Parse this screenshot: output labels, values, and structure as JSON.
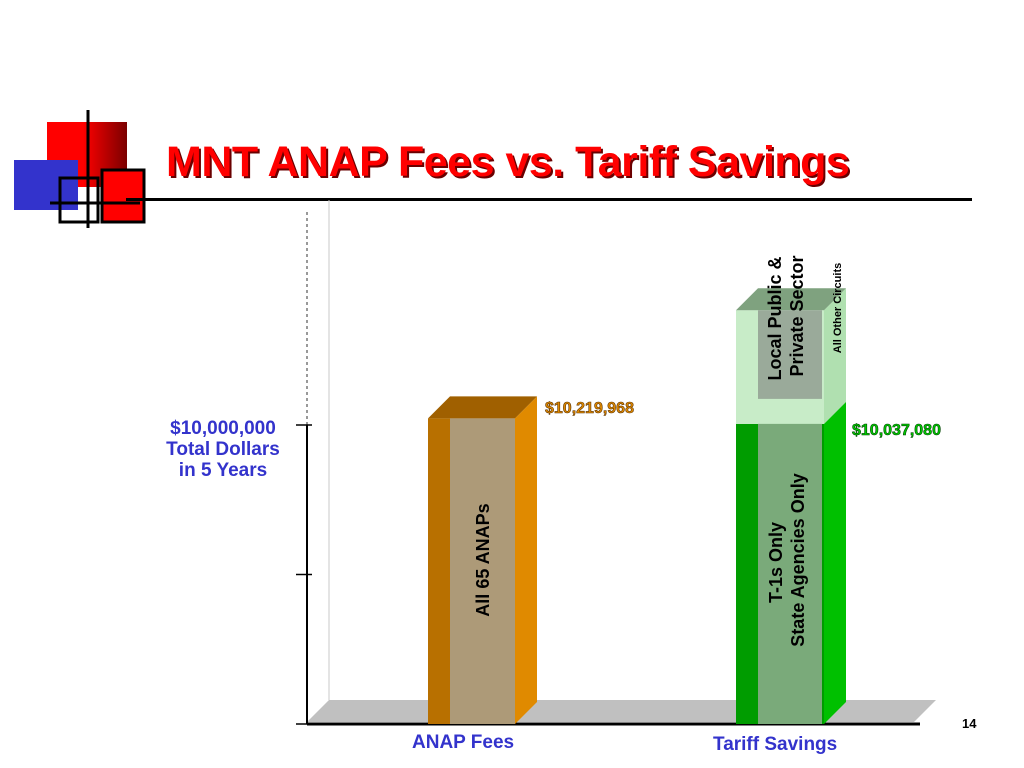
{
  "slide": {
    "title": "MNT ANAP Fees vs. Tariff Savings",
    "page_number": "14",
    "colors": {
      "title": "#ff0000",
      "axis_labels": "#3333cc",
      "anap_bar": "#e08a00",
      "tariff_bar_lower": "#00bb00",
      "tariff_bar_upper": "#b0e0b0"
    }
  },
  "chart_data": {
    "type": "bar",
    "categories": [
      "ANAP Fees",
      "Tariff Savings"
    ],
    "series": [
      {
        "values": [
          10219968,
          10037080
        ]
      },
      {
        "values": [
          0,
          3800000
        ]
      }
    ],
    "ylim": [
      0,
      15000000
    ],
    "yticks": [
      0,
      5000000,
      10000000,
      15000000
    ],
    "ytick_label": {
      "value": 10000000,
      "lines": [
        "$10,000,000",
        "Total Dollars",
        "in 5 Years"
      ]
    },
    "data_labels": [
      "$10,219,968",
      "$10,037,080"
    ],
    "bar_inner_labels": {
      "anap": "All 65 ANAPs",
      "tariff_lower": [
        "T-1s Only",
        "State Agencies Only"
      ],
      "tariff_upper": [
        "Local Public &",
        "Private Sector"
      ],
      "tariff_upper_side": "All Other Circuits"
    },
    "grid": false
  }
}
